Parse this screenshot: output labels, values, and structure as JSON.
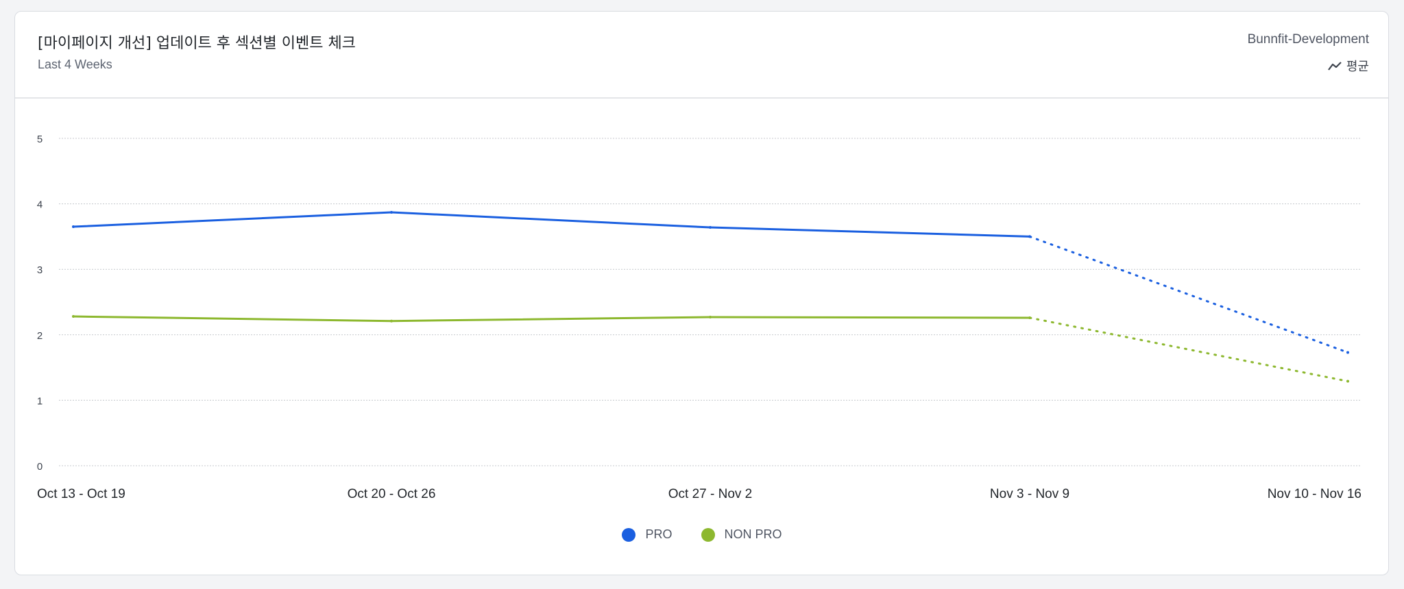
{
  "header": {
    "title": "[마이페이지 개선] 업데이트 후 섹션별 이벤트 체크",
    "subtitle": "Last 4 Weeks",
    "project": "Bunnfit-Development",
    "metric_label": "평균",
    "metric_icon": "line-chart-icon"
  },
  "chart_data": {
    "type": "line",
    "categories": [
      "Oct 13 - Oct 19",
      "Oct 20 - Oct 26",
      "Oct 27 - Nov 2",
      "Nov 3 - Nov 9",
      "Nov 10 - Nov 16"
    ],
    "ylim": [
      0,
      5
    ],
    "yticks": [
      "0",
      "1",
      "2",
      "3",
      "4",
      "5"
    ],
    "grid": true,
    "legend": "bottom-center",
    "incomplete_last_period_dotted": true,
    "series": [
      {
        "name": "PRO",
        "color": "#1a5fe0",
        "values": [
          3.65,
          3.87,
          3.64,
          3.5,
          1.73
        ]
      },
      {
        "name": "NON PRO",
        "color": "#8db82f",
        "values": [
          2.28,
          2.21,
          2.27,
          2.26,
          1.29
        ]
      }
    ]
  }
}
